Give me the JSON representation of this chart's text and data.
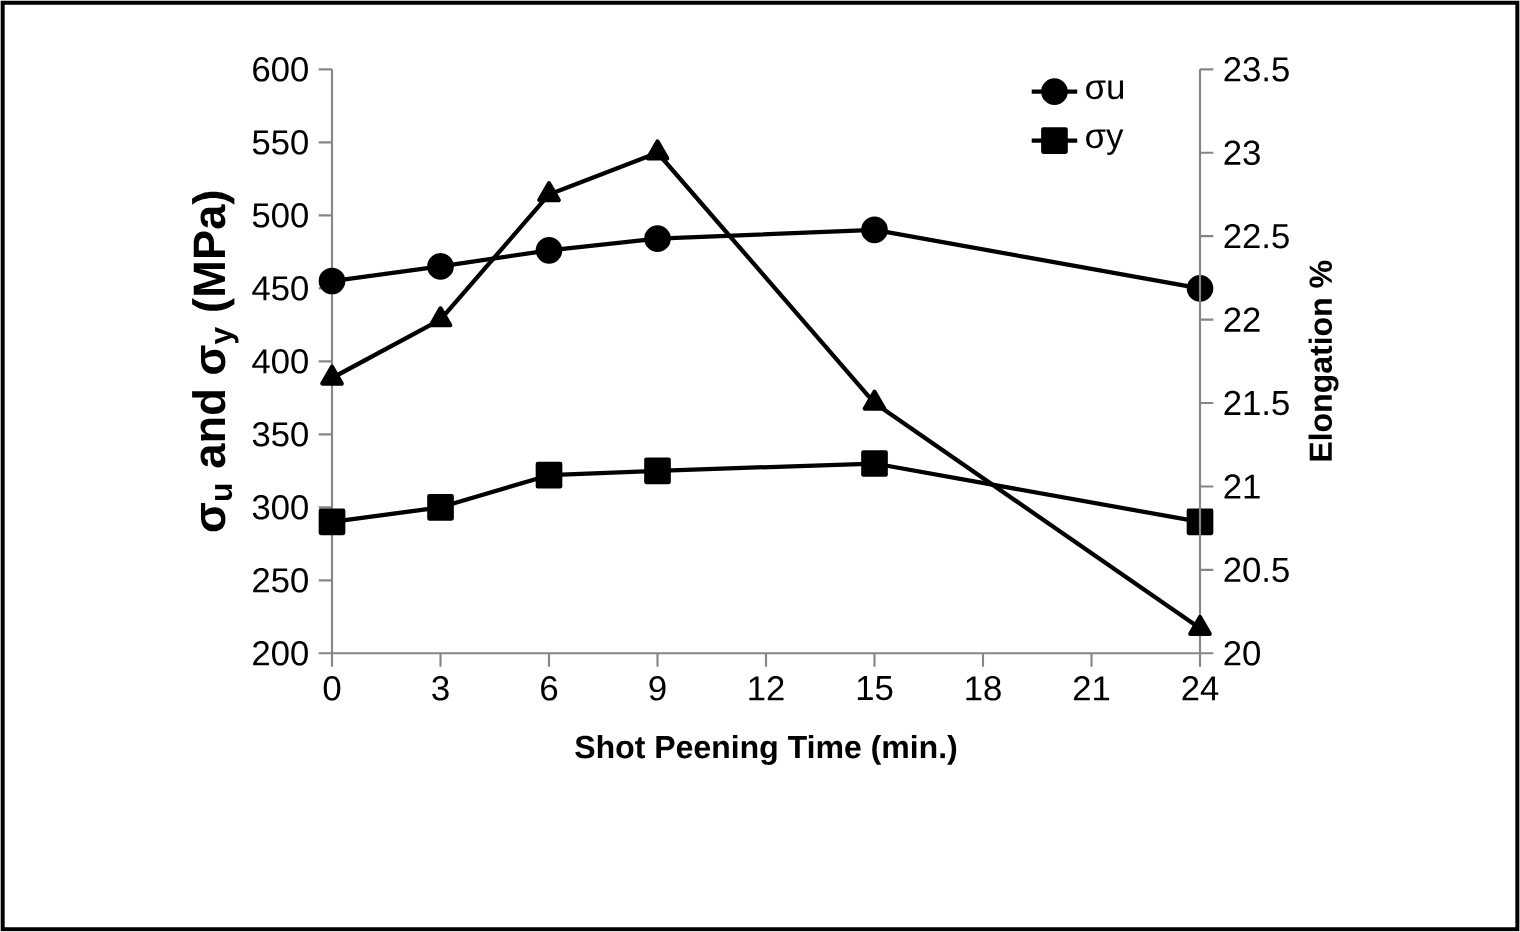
{
  "chart_data": {
    "type": "line",
    "xlabel": "Shot Peening Time (min.)",
    "ylabel": "σ$_{u}$ and σ$_{y}$ (MPa)",
    "y2label": "Elongation %",
    "x": [
      0,
      3,
      6,
      9,
      15,
      24
    ],
    "series": [
      {
        "name": "σu",
        "color": "#000000",
        "marker": "circle",
        "values": [
          455,
          465,
          476,
          484,
          490,
          450
        ]
      },
      {
        "name": "σy",
        "color": "#000000",
        "marker": "square",
        "values": [
          290,
          300,
          322,
          325,
          330,
          290
        ]
      },
      {
        "color": "#000000",
        "marker": "triangle",
        "axis": "y2",
        "values": [
          21.65,
          22.0,
          22.75,
          23.0,
          21.5,
          20.15
        ]
      }
    ],
    "xlim": [
      0,
      24
    ],
    "xticks": [
      0,
      3,
      6,
      9,
      12,
      15,
      18,
      21,
      24
    ],
    "ylim": [
      200,
      600
    ],
    "yticks": [
      200,
      250,
      300,
      350,
      400,
      450,
      500,
      550,
      600
    ],
    "y2lim": [
      20,
      23.5
    ],
    "y2ticks": [
      20,
      20.5,
      21,
      21.5,
      22,
      22.5,
      23,
      23.5
    ],
    "grid": false,
    "legend": "top right",
    "line_style": "solid"
  }
}
